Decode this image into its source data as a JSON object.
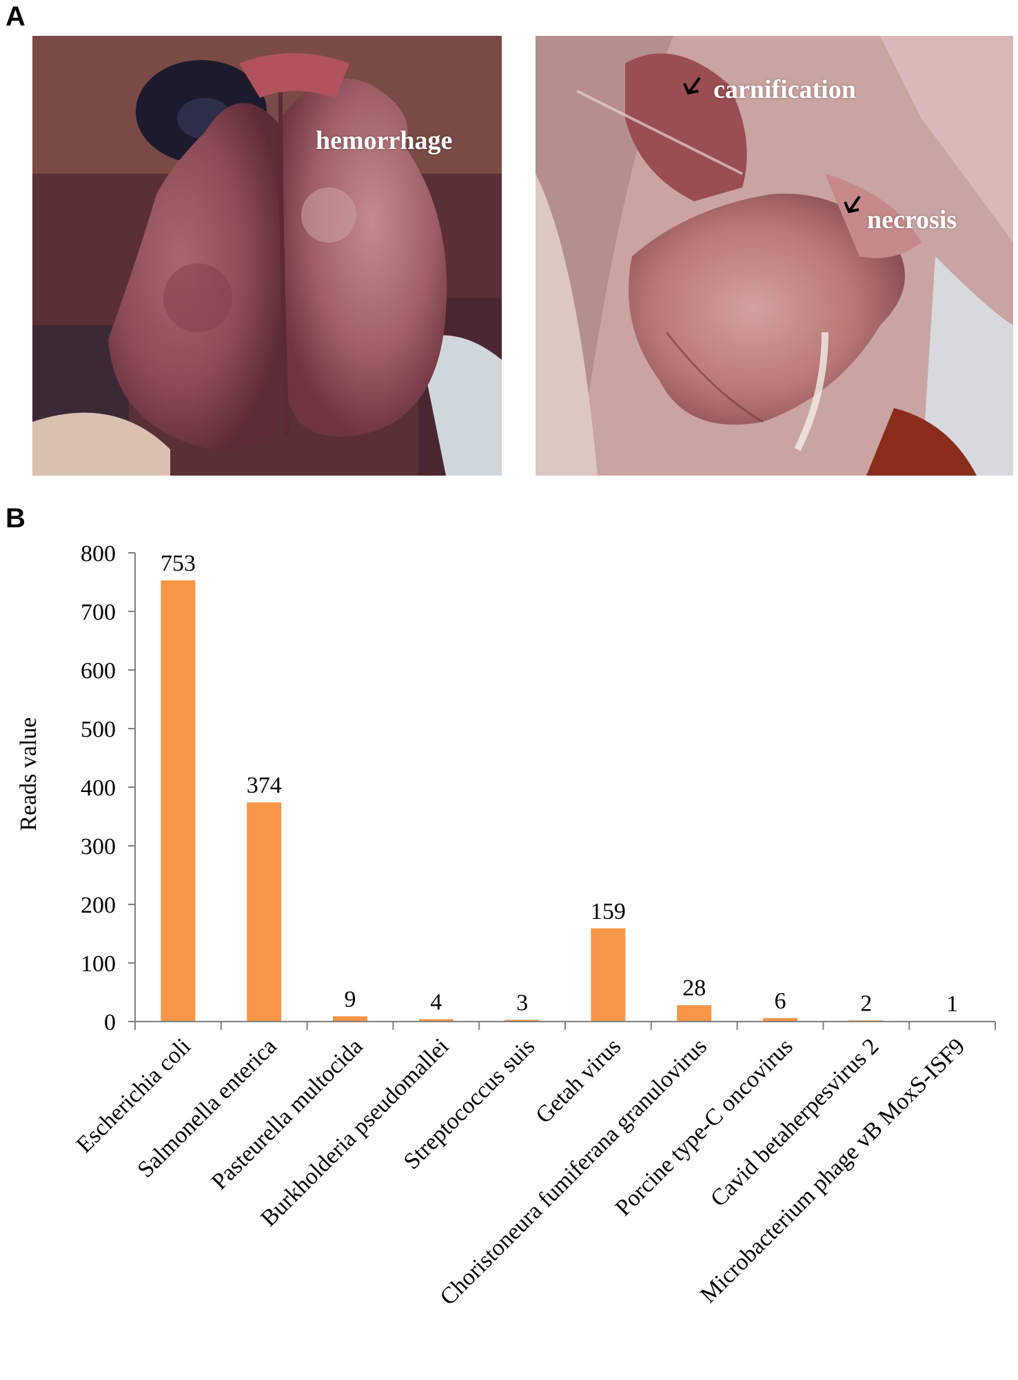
{
  "panels": {
    "a": {
      "letter": "A",
      "left_photo": {
        "label": "hemorrhage"
      },
      "right_photo": {
        "labels": [
          "carnification",
          "necrosis"
        ]
      }
    },
    "b": {
      "letter": "B"
    }
  },
  "colors": {
    "bar": "#F79646",
    "axis": "#7f7f7f",
    "label_text": "#ffffff"
  },
  "chart_data": {
    "type": "bar",
    "ylabel": "Reads value",
    "xlabel": "",
    "ylim": [
      0,
      800
    ],
    "yticks": [
      0,
      100,
      200,
      300,
      400,
      500,
      600,
      700,
      800
    ],
    "categories": [
      "Escherichia coli",
      "Salmonella enterica",
      "Pasteurella multocida",
      "Burkholderia pseudomallei",
      "Streptococcus suis",
      "Getah virus",
      "Choristoneura fumiferana granulovirus",
      "Porcine type-C oncovirus",
      "Cavid betaherpesvirus 2",
      "Microbacterium phage vB MoxS-ISF9"
    ],
    "values": [
      753,
      374,
      9,
      4,
      3,
      159,
      28,
      6,
      2,
      1
    ],
    "data_labels": [
      "753",
      "374",
      "9",
      "4",
      "3",
      "159",
      "28",
      "6",
      "2",
      "1"
    ],
    "grid": false,
    "legend": "none"
  }
}
